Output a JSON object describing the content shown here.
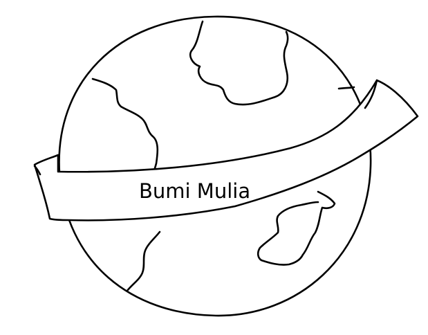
{
  "drawing": {
    "subject": "globe-with-banner",
    "banner_text": "Bumi Mulia"
  },
  "colors": {
    "background": "#ffffff",
    "ink": "#000000"
  }
}
